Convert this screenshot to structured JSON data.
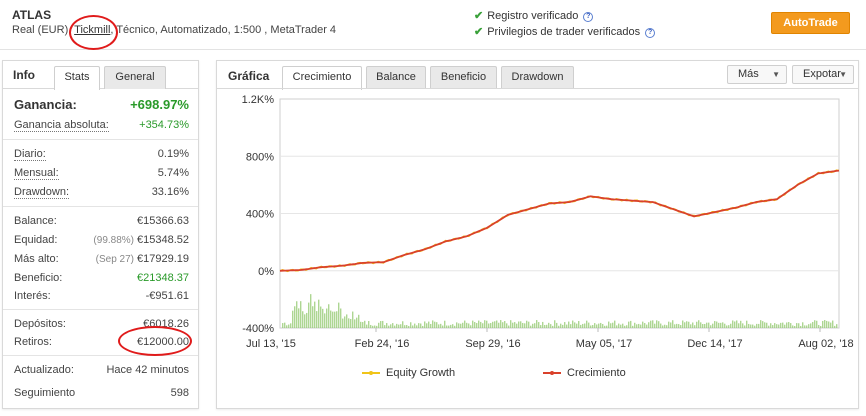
{
  "header": {
    "title": "ATLAS",
    "subtitle_prefix": "Real (EUR),",
    "broker": "Tickmill",
    "subtitle_suffix": ", Técnico, Automatizado, 1:500 , MetaTrader 4",
    "verifications": [
      {
        "label": "Registro verificado",
        "icon": "check-icon",
        "help_icon": "question-icon"
      },
      {
        "label": "Privilegios de trader verificados",
        "icon": "check-icon",
        "help_icon": "question-icon"
      }
    ],
    "autotrade_label": "AutoTrade"
  },
  "left_panel": {
    "title": "Info",
    "tabs": [
      {
        "label": "Stats",
        "active": true
      },
      {
        "label": "General",
        "active": false
      }
    ],
    "gain": {
      "label": "Ganancia:",
      "value": "+698.97%"
    },
    "abs_gain": {
      "label": "Ganancia absoluta:",
      "value": "+354.73%"
    },
    "daily": {
      "label": "Diario:",
      "value": "0.19%"
    },
    "monthly": {
      "label": "Mensual:",
      "value": "5.74%"
    },
    "drawdown": {
      "label": "Drawdown:",
      "value": "33.16%"
    },
    "balance": {
      "label": "Balance:",
      "value": "€15366.63"
    },
    "equity": {
      "label": "Equidad:",
      "pre": "(99.88%)",
      "value": "€15348.52"
    },
    "highest": {
      "label": "Más alto:",
      "pre": "(Sep 27)",
      "value": "€17929.19"
    },
    "profit": {
      "label": "Beneficio:",
      "value": "€21348.37"
    },
    "interest": {
      "label": "Interés:",
      "value": "-€951.61"
    },
    "deposits": {
      "label": "Depósitos:",
      "value": "€6018.26"
    },
    "withdrawals": {
      "label": "Retiros:",
      "value": "€12000.00"
    },
    "updated": {
      "label": "Actualizado:",
      "value": "Hace 42 minutos"
    },
    "tracking": {
      "label": "Seguimiento",
      "value": "598"
    }
  },
  "chart_panel": {
    "title": "Gráfica",
    "tabs": [
      {
        "label": "Crecimiento",
        "active": true
      },
      {
        "label": "Balance",
        "active": false
      },
      {
        "label": "Beneficio",
        "active": false
      },
      {
        "label": "Drawdown",
        "active": false
      }
    ],
    "more_label": "Más",
    "export_label": "Expotar"
  },
  "colors": {
    "accent_orange": "#f39a1e",
    "growth_red": "#d9412b",
    "equity_yellow": "#f0c419",
    "volume_green": "#99cc77",
    "positive_green": "#2a9a2a",
    "annotation_red": "#e01b1b"
  },
  "chart_data": {
    "type": "line",
    "x_ticks": [
      "Jul 13, '15",
      "Feb 24, '16",
      "Sep 29, '16",
      "May 05, '17",
      "Dec 14, '17",
      "Aug 02, '18"
    ],
    "y_ticks": [
      "1.2K%",
      "800%",
      "400%",
      "0%",
      "-400%"
    ],
    "ylim": [
      -400,
      1200
    ],
    "grid": true,
    "legend_position": "bottom",
    "series": [
      {
        "name": "Equity Growth",
        "color": "#f0c419",
        "x": [
          "Jul 13, '15",
          "Sep '15",
          "Nov '15",
          "Jan '16",
          "Feb 24, '16",
          "Apr '16",
          "Jun '16",
          "Aug '16",
          "Sep 29, '16",
          "Oct '16",
          "Dec '16",
          "Jan '17",
          "Mar '17",
          "Apr '17",
          "May 05, '17",
          "Jun '17",
          "Jul '17",
          "Sep '17",
          "Oct '17",
          "Nov '17",
          "Dec 14, '17",
          "Jan '18",
          "Mar '18",
          "Apr '18",
          "May '18",
          "Jun '18",
          "Aug 02, '18",
          "Aug '18"
        ],
        "y": [
          0,
          5,
          25,
          35,
          55,
          60,
          110,
          150,
          205,
          240,
          300,
          390,
          430,
          470,
          480,
          520,
          500,
          490,
          480,
          430,
          380,
          410,
          440,
          480,
          500,
          600,
          680,
          700
        ]
      },
      {
        "name": "Crecimiento",
        "color": "#d9412b",
        "x": [
          "Jul 13, '15",
          "Sep '15",
          "Nov '15",
          "Jan '16",
          "Feb 24, '16",
          "Apr '16",
          "Jun '16",
          "Aug '16",
          "Sep 29, '16",
          "Oct '16",
          "Dec '16",
          "Jan '17",
          "Mar '17",
          "Apr '17",
          "May 05, '17",
          "Jun '17",
          "Jul '17",
          "Sep '17",
          "Oct '17",
          "Nov '17",
          "Dec 14, '17",
          "Jan '18",
          "Mar '18",
          "Apr '18",
          "May '18",
          "Jun '18",
          "Aug 02, '18",
          "Aug '18"
        ],
        "y": [
          0,
          5,
          25,
          35,
          55,
          60,
          110,
          150,
          205,
          240,
          300,
          390,
          430,
          470,
          480,
          520,
          500,
          490,
          480,
          430,
          380,
          410,
          440,
          480,
          500,
          600,
          680,
          700
        ]
      }
    ]
  }
}
